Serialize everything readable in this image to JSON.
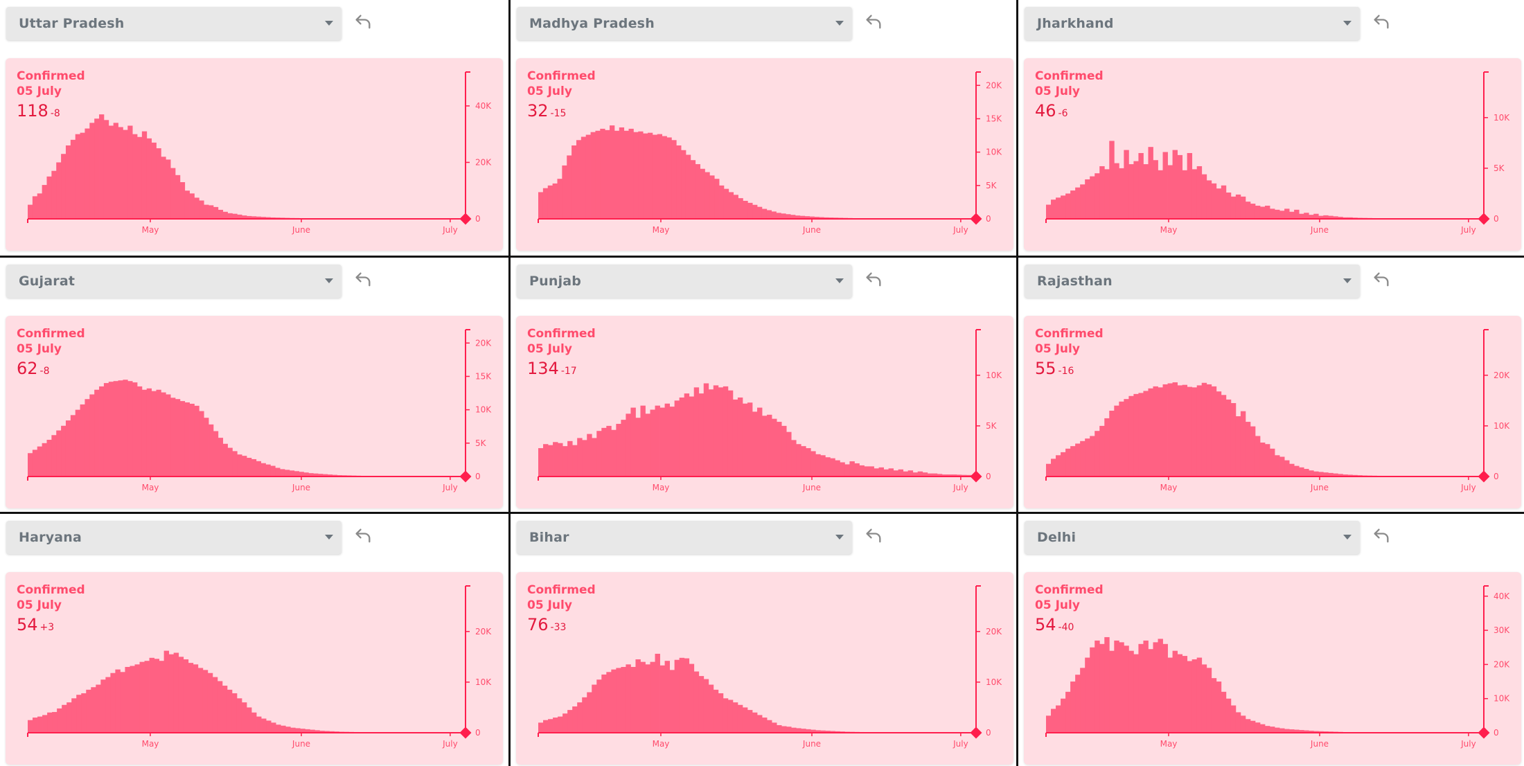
{
  "colors": {
    "card_bg": "#ffdde3",
    "bar": "#ff6183",
    "axis": "#ff1e4d",
    "label": "#ff4b6c",
    "value": "#e3193e",
    "dropdown_bg": "#e8e8e8",
    "dropdown_text": "#6c757d"
  },
  "icons": {
    "dropdown": "chevron-down-icon",
    "back": "undo-arrow-icon"
  },
  "chart_data": [
    {
      "type": "bar",
      "state": "Uttar Pradesh",
      "title": "Confirmed",
      "date": "05 July",
      "value": "118",
      "delta": "-8",
      "x_ticks": [
        "May",
        "June",
        "July"
      ],
      "y_ticks": [
        "40K",
        "20K",
        "0"
      ],
      "y_tick_values": [
        40000,
        20000,
        0
      ],
      "ylim": [
        0,
        52000
      ],
      "grid": false,
      "peak": 37000,
      "values": [
        5000,
        8000,
        9000,
        12000,
        15000,
        17000,
        20000,
        23000,
        26000,
        28000,
        30000,
        30500,
        32000,
        34000,
        35500,
        37000,
        35000,
        33000,
        34000,
        32500,
        31500,
        33000,
        30000,
        29000,
        31000,
        28500,
        27000,
        25000,
        22000,
        21000,
        18000,
        15500,
        13000,
        10000,
        9000,
        7500,
        6500,
        5000,
        4800,
        4200,
        3200,
        2500,
        2000,
        1800,
        1500,
        1200,
        1000,
        900,
        800,
        700,
        600,
        500,
        450,
        400,
        350,
        300,
        280,
        250,
        230,
        210,
        190,
        170,
        160,
        150,
        140,
        130,
        120,
        110,
        100,
        100,
        100,
        100,
        100,
        100,
        100,
        100,
        100,
        100,
        100,
        100,
        100,
        100,
        100,
        100,
        100,
        100,
        100,
        100,
        100,
        100,
        100,
        118
      ]
    },
    {
      "type": "bar",
      "state": "Madhya Pradesh",
      "title": "Confirmed",
      "date": "05 July",
      "value": "32",
      "delta": "-15",
      "x_ticks": [
        "May",
        "June",
        "July"
      ],
      "y_ticks": [
        "20K",
        "15K",
        "10K",
        "5K",
        "0"
      ],
      "y_tick_values": [
        20000,
        15000,
        10000,
        5000,
        0
      ],
      "ylim": [
        0,
        22000
      ],
      "grid": false,
      "peak": 14000,
      "values": [
        4000,
        4600,
        5000,
        5300,
        6000,
        8000,
        9500,
        11000,
        11800,
        12300,
        12600,
        13000,
        13200,
        13500,
        13300,
        14000,
        13200,
        13700,
        13200,
        13500,
        13000,
        13100,
        12800,
        12900,
        12600,
        12700,
        12400,
        12200,
        11800,
        11000,
        10300,
        9600,
        8800,
        8200,
        7500,
        7000,
        6500,
        6000,
        5000,
        4500,
        4000,
        3600,
        3100,
        2700,
        2400,
        2100,
        1800,
        1500,
        1300,
        1100,
        900,
        800,
        700,
        600,
        500,
        450,
        400,
        350,
        300,
        260,
        220,
        200,
        180,
        160,
        140,
        120,
        100,
        90,
        80,
        70,
        60,
        55,
        50,
        48,
        45,
        42,
        40,
        38,
        36,
        35,
        34,
        33,
        32,
        32,
        32,
        32,
        32,
        32,
        32,
        32,
        32,
        32
      ]
    },
    {
      "type": "bar",
      "state": "Jharkhand",
      "title": "Confirmed",
      "date": "05 July",
      "value": "46",
      "delta": "-6",
      "x_ticks": [
        "May",
        "June",
        "July"
      ],
      "y_ticks": [
        "10K",
        "5K",
        "0"
      ],
      "y_tick_values": [
        10000,
        5000,
        0
      ],
      "ylim": [
        0,
        14500
      ],
      "grid": false,
      "peak": 7700,
      "values": [
        1400,
        1900,
        2100,
        2300,
        2500,
        2800,
        3100,
        3400,
        3900,
        4200,
        4500,
        5200,
        4900,
        7700,
        5500,
        5000,
        6800,
        5400,
        5700,
        6500,
        5400,
        7100,
        5800,
        4800,
        6600,
        5300,
        6800,
        6300,
        4800,
        6500,
        4900,
        5200,
        4400,
        3800,
        3500,
        3000,
        3300,
        2600,
        2200,
        2400,
        2200,
        1700,
        1500,
        1300,
        1200,
        1300,
        1000,
        900,
        800,
        1000,
        700,
        900,
        500,
        600,
        400,
        500,
        300,
        350,
        300,
        250,
        200,
        150,
        150,
        120,
        100,
        90,
        80,
        70,
        60,
        60,
        55,
        50,
        50,
        50,
        50,
        50,
        50,
        50,
        50,
        50,
        50,
        50,
        50,
        50,
        50,
        50,
        50,
        50,
        50,
        46
      ]
    },
    {
      "type": "bar",
      "state": "Gujarat",
      "title": "Confirmed",
      "date": "05 July",
      "value": "62",
      "delta": "-8",
      "x_ticks": [
        "May",
        "June",
        "July"
      ],
      "y_ticks": [
        "20K",
        "15K",
        "10K",
        "5K",
        "0"
      ],
      "y_tick_values": [
        20000,
        15000,
        10000,
        5000,
        0
      ],
      "ylim": [
        0,
        22000
      ],
      "grid": false,
      "peak": 14500,
      "values": [
        3500,
        4000,
        4500,
        5000,
        5500,
        6200,
        6900,
        7600,
        8400,
        9200,
        10000,
        10800,
        11600,
        12300,
        13000,
        13500,
        14000,
        14200,
        14300,
        14400,
        14500,
        14300,
        14100,
        13500,
        13000,
        13200,
        12800,
        13000,
        12600,
        12300,
        11800,
        11600,
        11300,
        11100,
        10900,
        10600,
        9800,
        8800,
        7800,
        6800,
        5800,
        4900,
        4300,
        3800,
        3300,
        3100,
        2800,
        2600,
        2300,
        2000,
        1800,
        1600,
        1300,
        1100,
        1000,
        900,
        800,
        700,
        600,
        500,
        450,
        400,
        350,
        300,
        250,
        200,
        180,
        160,
        140,
        120,
        100,
        90,
        80,
        70,
        65,
        62,
        62,
        62,
        62,
        62,
        62,
        62,
        62,
        62,
        62,
        62,
        62,
        62,
        62,
        62,
        62,
        62
      ]
    },
    {
      "type": "bar",
      "state": "Punjab",
      "title": "Confirmed",
      "date": "05 July",
      "value": "134",
      "delta": "-17",
      "x_ticks": [
        "May",
        "June",
        "July"
      ],
      "y_ticks": [
        "10K",
        "5K",
        "0"
      ],
      "y_tick_values": [
        10000,
        5000,
        0
      ],
      "ylim": [
        0,
        14500
      ],
      "grid": false,
      "peak": 9200,
      "values": [
        2800,
        3200,
        3100,
        3400,
        3300,
        3000,
        3500,
        3100,
        3800,
        3600,
        4200,
        3800,
        4500,
        4800,
        5000,
        4600,
        5200,
        5600,
        6200,
        6800,
        5800,
        7000,
        6200,
        6600,
        7000,
        6800,
        7200,
        6900,
        7500,
        7800,
        8200,
        7900,
        8800,
        8200,
        9200,
        8600,
        9000,
        8800,
        8900,
        8500,
        7600,
        7800,
        7200,
        7300,
        6400,
        6800,
        6000,
        6100,
        5700,
        5400,
        5000,
        4400,
        3600,
        3200,
        3000,
        2800,
        2500,
        2200,
        2100,
        1900,
        1800,
        1600,
        1400,
        1200,
        1500,
        1300,
        1100,
        1000,
        1000,
        800,
        900,
        700,
        800,
        600,
        700,
        500,
        600,
        400,
        500,
        400,
        300,
        300,
        250,
        200,
        200,
        200,
        180,
        160,
        150,
        134
      ]
    },
    {
      "type": "bar",
      "state": "Rajasthan",
      "title": "Confirmed",
      "date": "05 July",
      "value": "55",
      "delta": "-16",
      "x_ticks": [
        "May",
        "June",
        "July"
      ],
      "y_ticks": [
        "20K",
        "10K",
        "0"
      ],
      "y_tick_values": [
        20000,
        10000,
        0
      ],
      "ylim": [
        0,
        29000
      ],
      "grid": false,
      "peak": 18600,
      "values": [
        2500,
        3500,
        4200,
        4800,
        5500,
        6000,
        6500,
        7000,
        7500,
        8000,
        9000,
        10000,
        11500,
        13000,
        14000,
        14800,
        15300,
        15900,
        16300,
        16500,
        16900,
        17400,
        17800,
        17600,
        18200,
        18400,
        18600,
        18000,
        18100,
        17700,
        17600,
        18000,
        18500,
        18200,
        17800,
        16800,
        16100,
        15200,
        14500,
        11900,
        12900,
        10800,
        9900,
        8000,
        6700,
        6400,
        5500,
        4200,
        3900,
        3200,
        2500,
        2100,
        1800,
        1500,
        1200,
        1000,
        900,
        800,
        700,
        600,
        500,
        400,
        350,
        300,
        250,
        200,
        180,
        160,
        140,
        120,
        100,
        90,
        80,
        70,
        65,
        60,
        58,
        55,
        55,
        55,
        55,
        55,
        55,
        55,
        55,
        55,
        55,
        55,
        55,
        55
      ]
    },
    {
      "type": "bar",
      "state": "Haryana",
      "title": "Confirmed",
      "date": "05 July",
      "value": "54",
      "delta": "+3",
      "x_ticks": [
        "May",
        "June",
        "July"
      ],
      "y_ticks": [
        "20K",
        "10K",
        "0"
      ],
      "y_tick_values": [
        20000,
        10000,
        0
      ],
      "ylim": [
        0,
        29000
      ],
      "grid": false,
      "peak": 16200,
      "values": [
        2500,
        3000,
        3200,
        3500,
        4000,
        4100,
        4800,
        5500,
        6000,
        6800,
        7500,
        7800,
        8500,
        9000,
        9500,
        10500,
        11000,
        11800,
        12500,
        12000,
        13000,
        13200,
        13500,
        14000,
        14200,
        14800,
        14600,
        14200,
        16200,
        15500,
        15800,
        15000,
        14500,
        13800,
        13500,
        12800,
        12400,
        11800,
        11000,
        10200,
        9300,
        8500,
        7800,
        6800,
        6000,
        5000,
        4000,
        3200,
        2800,
        2400,
        2000,
        1600,
        1400,
        1200,
        1000,
        900,
        800,
        700,
        600,
        500,
        400,
        350,
        300,
        250,
        200,
        180,
        160,
        140,
        120,
        100,
        90,
        80,
        70,
        65,
        60,
        58,
        55,
        54,
        54,
        54,
        54,
        54,
        54,
        54,
        54,
        54,
        54,
        54,
        54,
        54
      ]
    },
    {
      "type": "bar",
      "state": "Bihar",
      "title": "Confirmed",
      "date": "05 July",
      "value": "76",
      "delta": "-33",
      "x_ticks": [
        "May",
        "June",
        "July"
      ],
      "y_ticks": [
        "20K",
        "10K",
        "0"
      ],
      "y_tick_values": [
        20000,
        10000,
        0
      ],
      "ylim": [
        0,
        29000
      ],
      "grid": false,
      "peak": 15600,
      "values": [
        2000,
        2500,
        2700,
        3000,
        3200,
        3800,
        4500,
        5200,
        6000,
        7000,
        8000,
        9500,
        10500,
        11500,
        12000,
        12500,
        12800,
        13000,
        13500,
        13000,
        14500,
        14000,
        13500,
        14000,
        15600,
        13300,
        14200,
        12400,
        14400,
        14800,
        14700,
        13600,
        12100,
        11200,
        10600,
        9500,
        8500,
        7800,
        6800,
        6500,
        6000,
        5500,
        5000,
        4500,
        4000,
        3500,
        3000,
        2500,
        2000,
        1500,
        1300,
        1200,
        1000,
        900,
        800,
        700,
        600,
        500,
        450,
        400,
        350,
        300,
        250,
        200,
        180,
        160,
        140,
        120,
        100,
        90,
        85,
        80,
        78,
        76,
        76,
        76,
        76,
        76,
        76,
        76,
        76,
        76,
        76,
        76,
        76,
        76,
        76,
        76,
        76,
        76
      ]
    },
    {
      "type": "bar",
      "state": "Delhi",
      "title": "Confirmed",
      "date": "05 July",
      "value": "54",
      "delta": "-40",
      "x_ticks": [
        "May",
        "June",
        "July"
      ],
      "y_ticks": [
        "40K",
        "30K",
        "20K",
        "10K",
        "0"
      ],
      "y_tick_values": [
        40000,
        30000,
        20000,
        10000,
        0
      ],
      "ylim": [
        0,
        43000
      ],
      "grid": false,
      "peak": 28000,
      "values": [
        5000,
        7000,
        8000,
        10000,
        12000,
        15000,
        17000,
        19000,
        22000,
        25000,
        27000,
        26000,
        28000,
        24000,
        27000,
        26500,
        25500,
        24000,
        23000,
        26000,
        27000,
        24500,
        26500,
        27500,
        26000,
        22000,
        24000,
        23000,
        22500,
        21000,
        21500,
        22000,
        20000,
        19000,
        16000,
        15000,
        12000,
        10000,
        8000,
        6000,
        5000,
        4000,
        3500,
        3000,
        2500,
        2000,
        1800,
        1500,
        1300,
        1100,
        1000,
        900,
        800,
        700,
        600,
        500,
        450,
        400,
        350,
        300,
        250,
        200,
        180,
        160,
        140,
        120,
        100,
        90,
        80,
        70,
        65,
        60,
        58,
        56,
        55,
        54,
        54,
        54,
        54,
        54,
        54,
        54,
        54,
        54,
        54,
        54,
        54,
        54,
        54,
        54
      ]
    }
  ]
}
